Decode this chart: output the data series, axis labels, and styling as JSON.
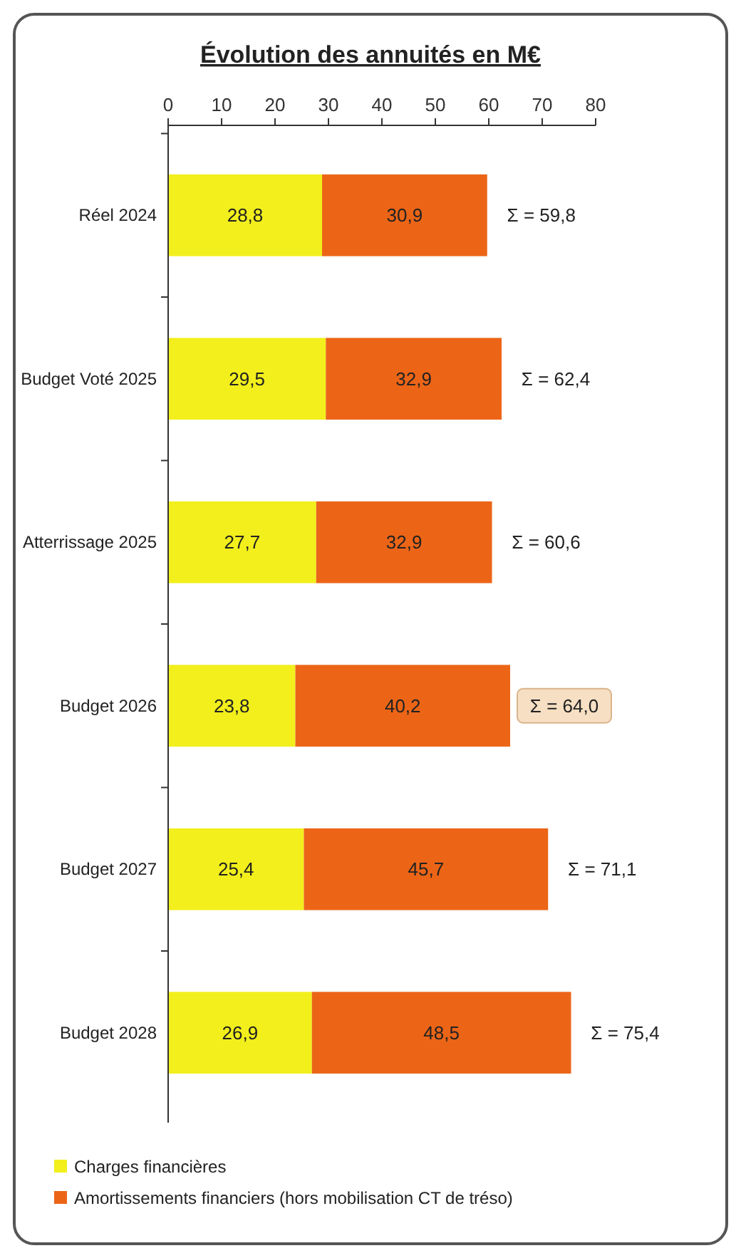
{
  "chart_data": {
    "type": "bar",
    "orientation": "horizontal",
    "title": "Évolution des annuités en M€",
    "categories": [
      "Réel 2024",
      "Budget Voté 2025",
      "Atterrissage 2025",
      "Budget 2026",
      "Budget 2027",
      "Budget 2028"
    ],
    "stacked": true,
    "xlim": [
      0,
      80
    ],
    "xticks": [
      0,
      10,
      20,
      30,
      40,
      50,
      60,
      70,
      80
    ],
    "grid": false,
    "legend": "bottom",
    "series": [
      {
        "name": "Charges financières",
        "color": "#f2ef1c",
        "values": [
          28.8,
          29.5,
          27.7,
          23.8,
          25.4,
          26.9
        ],
        "value_labels": [
          "28,8",
          "29,5",
          "27,7",
          "23,8",
          "25,4",
          "26,9"
        ]
      },
      {
        "name": "Amortissements financiers (hors mobilisation CT de tréso)",
        "color": "#ec6517",
        "values": [
          30.9,
          32.9,
          32.9,
          40.2,
          45.7,
          48.5
        ],
        "value_labels": [
          "30,9",
          "32,9",
          "32,9",
          "40,2",
          "45,7",
          "48,5"
        ]
      }
    ],
    "totals": [
      "Σ = 59,8",
      "Σ = 62,4",
      "Σ = 60,6",
      "Σ = 64,0",
      "Σ = 71,1",
      "Σ = 75,4"
    ]
  }
}
